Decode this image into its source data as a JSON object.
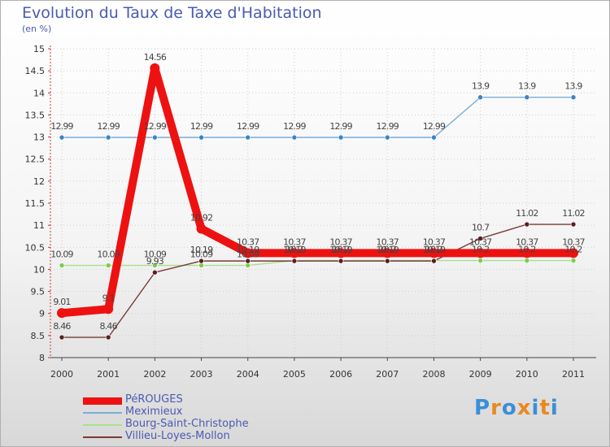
{
  "chart_data": {
    "type": "line",
    "title": "Evolution du Taux de Taxe d'Habitation",
    "ylabel": "(en %)",
    "xlabel": "",
    "ylim": [
      8,
      15
    ],
    "yticks": [
      "8",
      "8.5",
      "9",
      "9.5",
      "10",
      "10.5",
      "11",
      "11.5",
      "12",
      "12.5",
      "13",
      "13.5",
      "14",
      "14.5",
      "15"
    ],
    "categories": [
      "2000",
      "2001",
      "2002",
      "2003",
      "2004",
      "2005",
      "2006",
      "2007",
      "2008",
      "2009",
      "2010",
      "2011"
    ],
    "series": [
      {
        "name": "Meximieux",
        "color": "#7aaed8",
        "marker": "#3a84c4",
        "values": [
          12.99,
          12.99,
          12.99,
          12.99,
          12.99,
          12.99,
          12.99,
          12.99,
          12.99,
          13.9,
          13.9,
          13.9
        ],
        "labels": [
          "12.99",
          "12.99",
          "12.99",
          "12.99",
          "12.99",
          "12.99",
          "12.99",
          "12.99",
          "12.99",
          "13.9",
          "13.9",
          "13.9"
        ]
      },
      {
        "name": "Bourg-Saint-Christophe",
        "color": "#a8e08a",
        "marker": "#7ccc4a",
        "values": [
          10.09,
          10.09,
          10.09,
          10.09,
          10.09,
          10.2,
          10.2,
          10.2,
          10.2,
          10.2,
          10.2,
          10.2
        ],
        "labels": [
          "10.09",
          "10.09",
          "10.09",
          "10.09",
          "10.09",
          "10.2",
          "10.2",
          "10.2",
          "10.2",
          "10.2",
          "10.2",
          "10.2"
        ]
      },
      {
        "name": "Villieu-Loyes-Mollon",
        "color": "#7a3a3a",
        "marker": "#5a1e1e",
        "values": [
          8.46,
          8.46,
          9.93,
          10.19,
          10.19,
          10.19,
          10.19,
          10.19,
          10.19,
          10.7,
          11.02,
          11.02
        ],
        "labels": [
          "8.46",
          "8.46",
          "9.93",
          "10.19",
          "10.19",
          "10.19",
          "10.19",
          "10.19",
          "10.19",
          "10.7",
          "11.02",
          "11.02"
        ]
      },
      {
        "name": "PéROUGES",
        "color": "#ee1111",
        "marker": "#ee1111",
        "values": [
          9.01,
          9.1,
          14.56,
          10.92,
          10.37,
          10.37,
          10.37,
          10.37,
          10.37,
          10.37,
          10.37,
          10.37
        ],
        "labels": [
          "9.01",
          "9.1",
          "14.56",
          "10.92",
          "10.37",
          "10.37",
          "10.37",
          "10.37",
          "10.37",
          "10.37",
          "10.37",
          "10.37"
        ]
      }
    ]
  },
  "legend": [
    {
      "name": "PéROUGES",
      "color": "#ee1111"
    },
    {
      "name": "Meximieux",
      "color": "#7aaed8"
    },
    {
      "name": "Bourg-Saint-Christophe",
      "color": "#a8e08a"
    },
    {
      "name": "Villieu-Loyes-Mollon",
      "color": "#7a3a3a"
    }
  ],
  "brand": {
    "text": "Proxiti",
    "colors": [
      "#3a8fd8",
      "#e8891f",
      "#3a8fd8",
      "#e8891f",
      "#3a8fd8",
      "#e8891f",
      "#3a8fd8"
    ]
  }
}
